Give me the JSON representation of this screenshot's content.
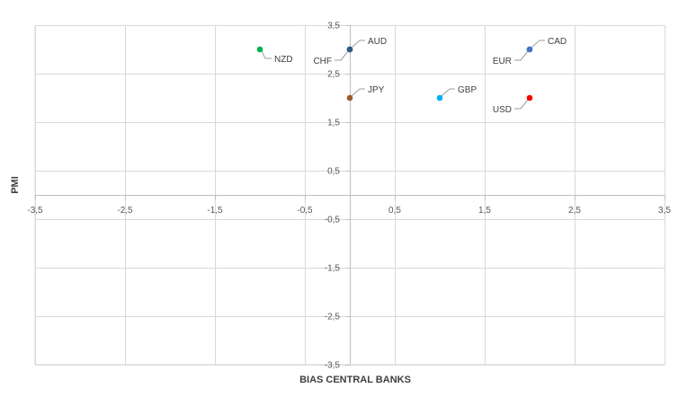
{
  "chart_data": {
    "type": "scatter",
    "xlabel": "BIAS CENTRAL BANKS",
    "ylabel": "PMI",
    "xlim": [
      -3.5,
      3.5
    ],
    "ylim": [
      -3.5,
      3.5
    ],
    "grid": true,
    "legend": "none",
    "x_ticks": [
      "-3,5",
      "-2,5",
      "-1,5",
      "-0,5",
      "0,5",
      "1,5",
      "2,5",
      "3,5"
    ],
    "x_tick_values": [
      -3.5,
      -2.5,
      -1.5,
      -0.5,
      0.5,
      1.5,
      2.5,
      3.5
    ],
    "y_ticks": [
      "3,5",
      "2,5",
      "1,5",
      "0,5",
      "-0,5",
      "-1,5",
      "-2,5",
      "-3,5"
    ],
    "y_tick_values": [
      3.5,
      2.5,
      1.5,
      0.5,
      -0.5,
      -1.5,
      -2.5,
      -3.5
    ],
    "points": [
      {
        "label": "AUD",
        "x": 0,
        "y": 3,
        "color": "#2e5b84",
        "label_pos": "upper-right"
      },
      {
        "label": "CHF",
        "x": 0,
        "y": 3,
        "color": "#2e5b84",
        "label_pos": "lower-left"
      },
      {
        "label": "NZD",
        "x": -1,
        "y": 3,
        "color": "#00b050",
        "label_pos": "lower-right"
      },
      {
        "label": "JPY",
        "x": 0,
        "y": 2,
        "color": "#9c5b2d",
        "label_pos": "upper-right"
      },
      {
        "label": "GBP",
        "x": 1,
        "y": 2,
        "color": "#00b0f0",
        "label_pos": "upper-right"
      },
      {
        "label": "CAD",
        "x": 2,
        "y": 3,
        "color": "#4472c4",
        "label_pos": "upper-right"
      },
      {
        "label": "EUR",
        "x": 2,
        "y": 3,
        "color": "#4472c4",
        "label_pos": "lower-left"
      },
      {
        "label": "USD",
        "x": 2,
        "y": 2,
        "color": "#ff0000",
        "label_pos": "lower-left"
      }
    ]
  }
}
